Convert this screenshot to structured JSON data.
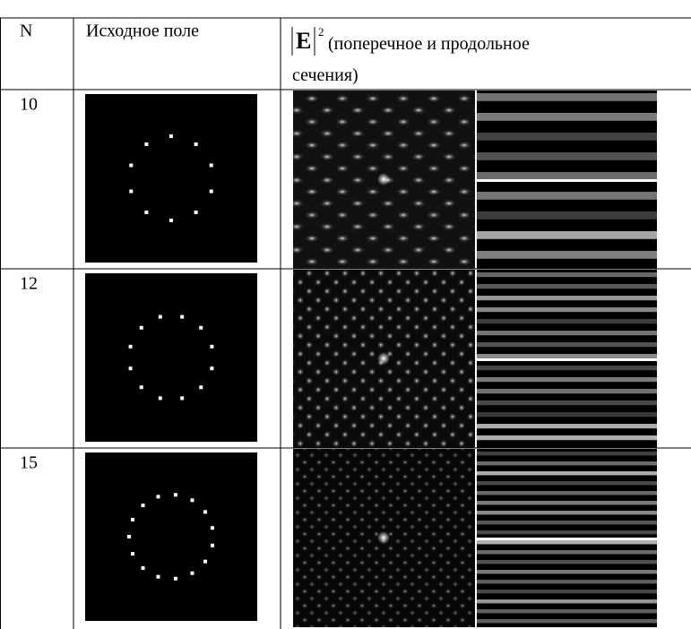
{
  "table": {
    "header": {
      "n": "N",
      "source": "Исходное поле",
      "symbol": "E",
      "power": "2",
      "text1": "(поперечное и продольное",
      "text2": "сечения)"
    },
    "rows": [
      {
        "n": 10
      },
      {
        "n": 12
      },
      {
        "n": 15
      }
    ]
  }
}
